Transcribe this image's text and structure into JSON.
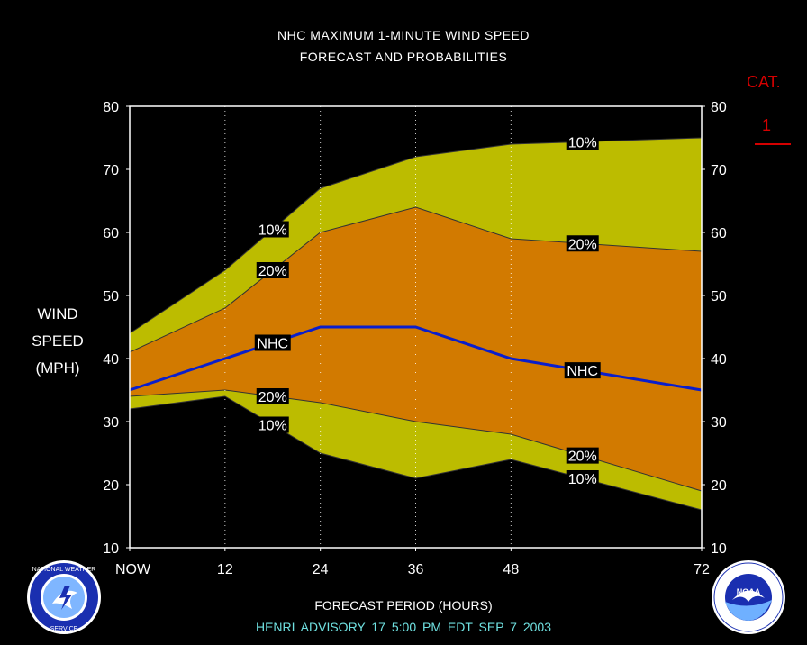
{
  "header": {
    "title_line1": "NHC MAXIMUM 1-MINUTE WIND SPEED",
    "title_line2": "FORECAST AND PROBABILITIES"
  },
  "category": {
    "label": "CAT.",
    "value": "1",
    "color": "#d40000"
  },
  "y_axis_label": [
    "WIND",
    "SPEED",
    "(MPH)"
  ],
  "x_axis_label": "FORECAST PERIOD (HOURS)",
  "advisory": "HENRI   ADVISORY  17 5:00  PM  EDT  SEP  7  2003",
  "logos": {
    "left": {
      "icon": "nws-seal-icon",
      "text": "NATIONAL WEATHER SERVICE"
    },
    "right": {
      "icon": "noaa-seal-icon",
      "text": "NOAA"
    }
  },
  "colors": {
    "outer_band": "#bcbc00",
    "inner_band": "#d27a00",
    "nhc_line": "#0a1ecc",
    "background": "#000000",
    "category_line": "#d40000"
  },
  "chart_data": {
    "type": "area",
    "x": [
      0,
      12,
      24,
      36,
      48,
      72
    ],
    "x_tick_labels": [
      "NOW",
      "12",
      "24",
      "36",
      "48",
      "72"
    ],
    "ylim": [
      10,
      80
    ],
    "y_ticks": [
      10,
      20,
      30,
      40,
      50,
      60,
      70,
      80
    ],
    "grid": "vertical dotted at forecast hours",
    "series": [
      {
        "name": "10%",
        "role": "upper",
        "values": [
          44,
          54,
          67,
          72,
          74,
          75
        ]
      },
      {
        "name": "20%",
        "role": "upper",
        "values": [
          41,
          48,
          60,
          64,
          59,
          57
        ]
      },
      {
        "name": "NHC",
        "role": "forecast",
        "values": [
          35,
          40,
          45,
          45,
          40,
          35
        ]
      },
      {
        "name": "20%",
        "role": "lower",
        "values": [
          34,
          35,
          33,
          30,
          28,
          19
        ]
      },
      {
        "name": "10%",
        "role": "lower",
        "values": [
          32,
          34,
          25,
          21,
          24,
          16
        ]
      }
    ],
    "labels": [
      {
        "text": "10%",
        "series": 0,
        "x": 18
      },
      {
        "text": "20%",
        "series": 1,
        "x": 18
      },
      {
        "text": "NHC",
        "series": 2,
        "x": 18
      },
      {
        "text": "20%",
        "series": 3,
        "x": 18
      },
      {
        "text": "10%",
        "series": 4,
        "x": 18
      },
      {
        "text": "10%",
        "series": 0,
        "x": 57
      },
      {
        "text": "20%",
        "series": 1,
        "x": 57
      },
      {
        "text": "NHC",
        "series": 2,
        "x": 57
      },
      {
        "text": "20%",
        "series": 3,
        "x": 57
      },
      {
        "text": "10%",
        "series": 4,
        "x": 57
      }
    ]
  }
}
